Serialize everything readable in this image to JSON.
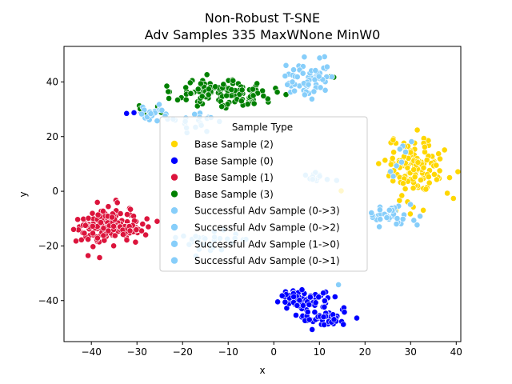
{
  "chart_data": {
    "type": "scatter",
    "title": "Non-Robust T-SNE",
    "subtitle": "Adv Samples 335 MaxWNone MinW0",
    "xlabel": "x",
    "ylabel": "y",
    "xlim": [
      -46,
      41
    ],
    "ylim": [
      -55,
      53
    ],
    "xticks": [
      "−40",
      "−30",
      "−20",
      "−10",
      "0",
      "10",
      "20",
      "30",
      "40"
    ],
    "yticks": [
      "−40",
      "−20",
      "0",
      "20",
      "40"
    ],
    "grid": false,
    "legend": {
      "title": "Sample Type",
      "placement": "center"
    },
    "series": [
      {
        "name": "Base Sample (2)",
        "color": "#FFD700",
        "clusters": [
          {
            "cx": 31.5,
            "cy": 9,
            "sx": 3.2,
            "sy": 5,
            "n": 130
          },
          {
            "cx": 28.5,
            "cy": -6,
            "sx": 1.5,
            "sy": 1.6,
            "n": 5
          },
          {
            "cx": 14.5,
            "cy": 0,
            "sx": 0.3,
            "sy": 0.3,
            "n": 1
          }
        ]
      },
      {
        "name": "Base Sample (0)",
        "color": "#0000FF",
        "clusters": [
          {
            "cx": 7.5,
            "cy": -39.5,
            "sx": 3.2,
            "sy": 2.0,
            "n": 75
          },
          {
            "cx": 10.5,
            "cy": -46,
            "sx": 2.6,
            "sy": 1.6,
            "n": 45
          },
          {
            "cx": -30.5,
            "cy": 29,
            "sx": 1.0,
            "sy": 1.0,
            "n": 4
          }
        ]
      },
      {
        "name": "Base Sample (1)",
        "color": "#DC143C",
        "clusters": [
          {
            "cx": -37.5,
            "cy": -13.5,
            "sx": 2.8,
            "sy": 3.5,
            "n": 120
          },
          {
            "cx": -31.5,
            "cy": -12.5,
            "sx": 2.4,
            "sy": 2.4,
            "n": 45
          }
        ]
      },
      {
        "name": "Base Sample (3)",
        "color": "#008000",
        "clusters": [
          {
            "cx": -12,
            "cy": 36,
            "sx": 5.6,
            "sy": 2.4,
            "n": 135
          },
          {
            "cx": -27,
            "cy": 28,
            "sx": 1.6,
            "sy": 2.5,
            "n": 6
          },
          {
            "cx": 13,
            "cy": 42,
            "sx": 0.6,
            "sy": 0.6,
            "n": 2
          }
        ]
      },
      {
        "name": "Successful Adv Sample (0->3)",
        "color": "#87CEFA",
        "clusters": [
          {
            "cx": 7,
            "cy": 41,
            "sx": 2.7,
            "sy": 3.2,
            "n": 60
          },
          {
            "cx": -26,
            "cy": 28,
            "sx": 2.2,
            "sy": 1.8,
            "n": 20
          },
          {
            "cx": -17,
            "cy": 26,
            "sx": 3.0,
            "sy": 2.0,
            "n": 20
          }
        ]
      },
      {
        "name": "Successful Adv Sample (0->2)",
        "color": "#87CEFA",
        "clusters": [
          {
            "cx": 26,
            "cy": -9,
            "sx": 2.8,
            "sy": 1.7,
            "n": 40
          },
          {
            "cx": 28,
            "cy": 12,
            "sx": 1.0,
            "sy": 4.0,
            "n": 8
          }
        ]
      },
      {
        "name": "Successful Adv Sample (1->0)",
        "color": "#87CEFA",
        "clusters": [
          {
            "cx": -14,
            "cy": -18,
            "sx": 4.0,
            "sy": 2.0,
            "n": 30
          }
        ]
      },
      {
        "name": "Successful Adv Sample (0->1)",
        "color": "#87CEFA",
        "clusters": [
          {
            "cx": 10,
            "cy": 5.5,
            "sx": 1.8,
            "sy": 1.5,
            "n": 15
          },
          {
            "cx": 14.5,
            "cy": -34,
            "sx": 0.4,
            "sy": 0.4,
            "n": 1
          }
        ]
      }
    ]
  }
}
